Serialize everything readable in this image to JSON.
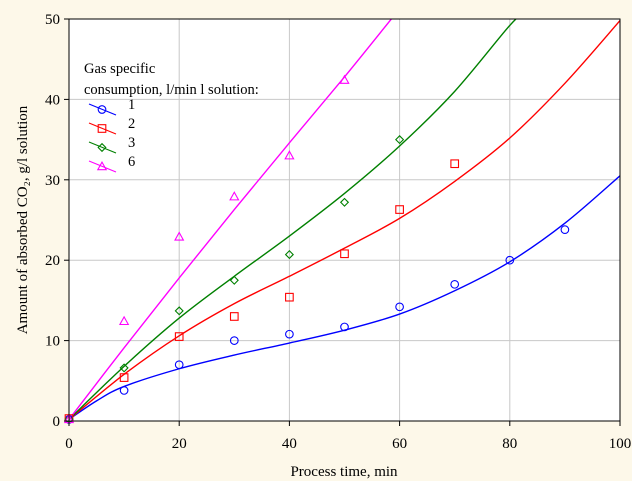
{
  "chart_data": {
    "type": "scatter",
    "xlabel": "Process time, min",
    "ylabel": "Amount of absorbed CO₂, g/l solution",
    "xlim": [
      0,
      100
    ],
    "ylim": [
      0,
      50
    ],
    "xticks": [
      0,
      20,
      40,
      60,
      80,
      100
    ],
    "yticks": [
      0,
      10,
      20,
      30,
      40,
      50
    ],
    "grid": true,
    "legend": {
      "title_line1": "Gas specific",
      "title_line2": "consumption, l/min l solution:",
      "placement": "top-left"
    },
    "series": [
      {
        "name": "1",
        "color": "#0000ff",
        "marker": "circle",
        "points": [
          [
            0,
            0.2
          ],
          [
            10,
            3.8
          ],
          [
            20,
            7.0
          ],
          [
            30,
            10.0
          ],
          [
            40,
            10.8
          ],
          [
            50,
            11.7
          ],
          [
            60,
            14.2
          ],
          [
            70,
            17.0
          ],
          [
            80,
            20.0
          ],
          [
            90,
            23.8
          ]
        ],
        "fit": [
          [
            0,
            0.2
          ],
          [
            5,
            2.5
          ],
          [
            10,
            4.3
          ],
          [
            20,
            6.5
          ],
          [
            30,
            8.2
          ],
          [
            40,
            9.7
          ],
          [
            50,
            11.3
          ],
          [
            60,
            13.3
          ],
          [
            70,
            16.2
          ],
          [
            80,
            19.8
          ],
          [
            90,
            24.6
          ],
          [
            100,
            30.5
          ]
        ]
      },
      {
        "name": "2",
        "color": "#ff0000",
        "marker": "square",
        "points": [
          [
            0,
            0.3
          ],
          [
            10,
            5.4
          ],
          [
            20,
            10.5
          ],
          [
            30,
            13.0
          ],
          [
            40,
            15.4
          ],
          [
            50,
            20.8
          ],
          [
            60,
            26.3
          ],
          [
            70,
            32.0
          ]
        ],
        "fit": [
          [
            0,
            0.2
          ],
          [
            10,
            5.8
          ],
          [
            20,
            10.6
          ],
          [
            30,
            14.6
          ],
          [
            40,
            18.0
          ],
          [
            50,
            21.5
          ],
          [
            60,
            25.2
          ],
          [
            70,
            29.8
          ],
          [
            80,
            35.2
          ],
          [
            90,
            42.0
          ],
          [
            100,
            49.8
          ]
        ]
      },
      {
        "name": "3",
        "color": "#008000",
        "marker": "diamond",
        "points": [
          [
            0,
            0.2
          ],
          [
            10,
            6.6
          ],
          [
            20,
            13.7
          ],
          [
            30,
            17.5
          ],
          [
            40,
            20.7
          ],
          [
            50,
            27.2
          ],
          [
            60,
            35.0
          ]
        ],
        "fit": [
          [
            0,
            0.2
          ],
          [
            10,
            6.8
          ],
          [
            20,
            12.8
          ],
          [
            30,
            18.0
          ],
          [
            40,
            23.0
          ],
          [
            50,
            28.3
          ],
          [
            60,
            34.2
          ],
          [
            70,
            41.0
          ],
          [
            80,
            49.2
          ],
          [
            83,
            51.0
          ]
        ]
      },
      {
        "name": "6",
        "color": "#ff00ff",
        "marker": "triangle",
        "points": [
          [
            0,
            0.2
          ],
          [
            10,
            12.4
          ],
          [
            20,
            22.9
          ],
          [
            30,
            27.9
          ],
          [
            40,
            33.0
          ],
          [
            50,
            42.4
          ]
        ],
        "fit": [
          [
            0,
            0.2
          ],
          [
            10,
            9.1
          ],
          [
            20,
            17.8
          ],
          [
            30,
            26.3
          ],
          [
            40,
            34.6
          ],
          [
            50,
            42.8
          ],
          [
            58.5,
            50
          ]
        ]
      }
    ]
  }
}
